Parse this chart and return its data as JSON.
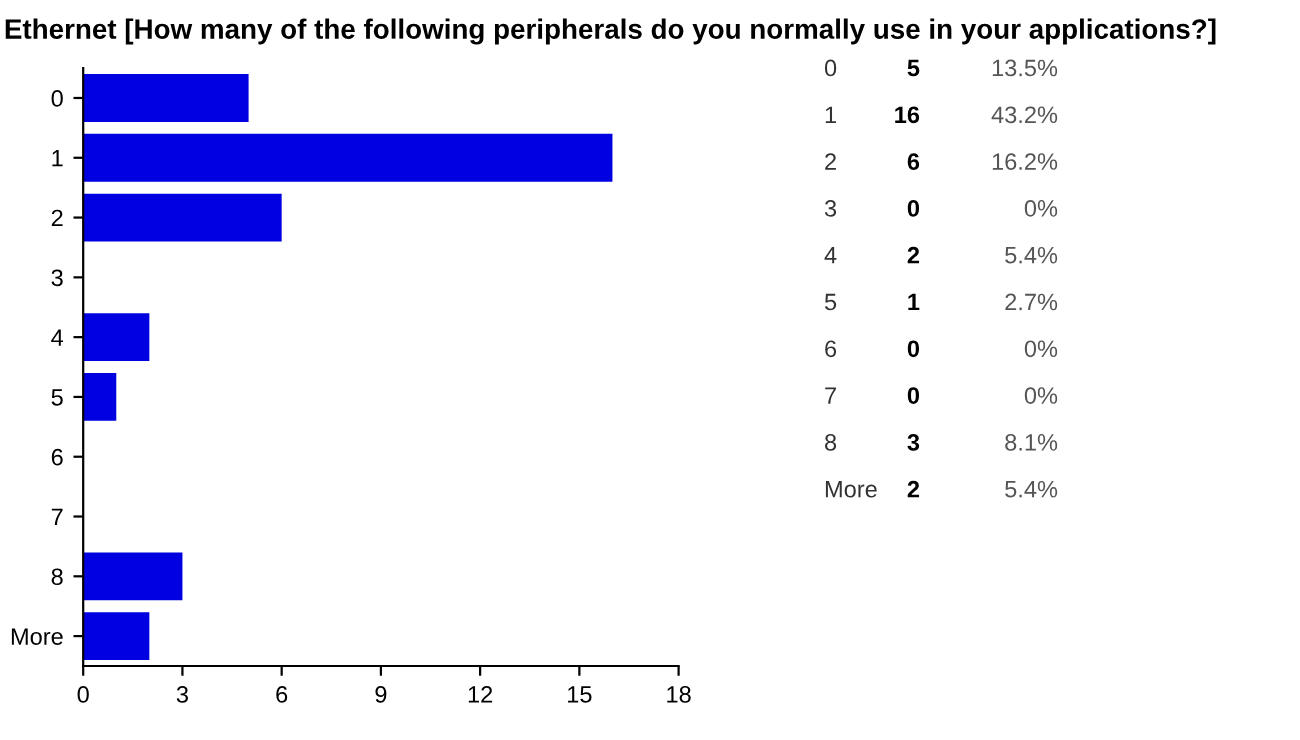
{
  "chart_data": {
    "type": "bar",
    "orientation": "horizontal",
    "title": "Ethernet [How many of the following peripherals do you normally use in your applications?]",
    "categories": [
      "0",
      "1",
      "2",
      "3",
      "4",
      "5",
      "6",
      "7",
      "8",
      "More"
    ],
    "values": [
      5,
      16,
      6,
      0,
      2,
      1,
      0,
      0,
      3,
      2
    ],
    "color": "#0000e0",
    "xlim": [
      0,
      18
    ],
    "xticks": [
      0,
      3,
      6,
      9,
      12,
      15,
      18
    ],
    "grid": false,
    "annotations": [
      "5",
      "13.5%",
      "16",
      "43.2%",
      "6",
      "16.2%",
      "0",
      "0%",
      "2",
      "5.4%",
      "1",
      "2.7%",
      "0",
      "0%",
      "0",
      "0%",
      "3",
      "8.1%",
      "2",
      "5.4%"
    ]
  }
}
